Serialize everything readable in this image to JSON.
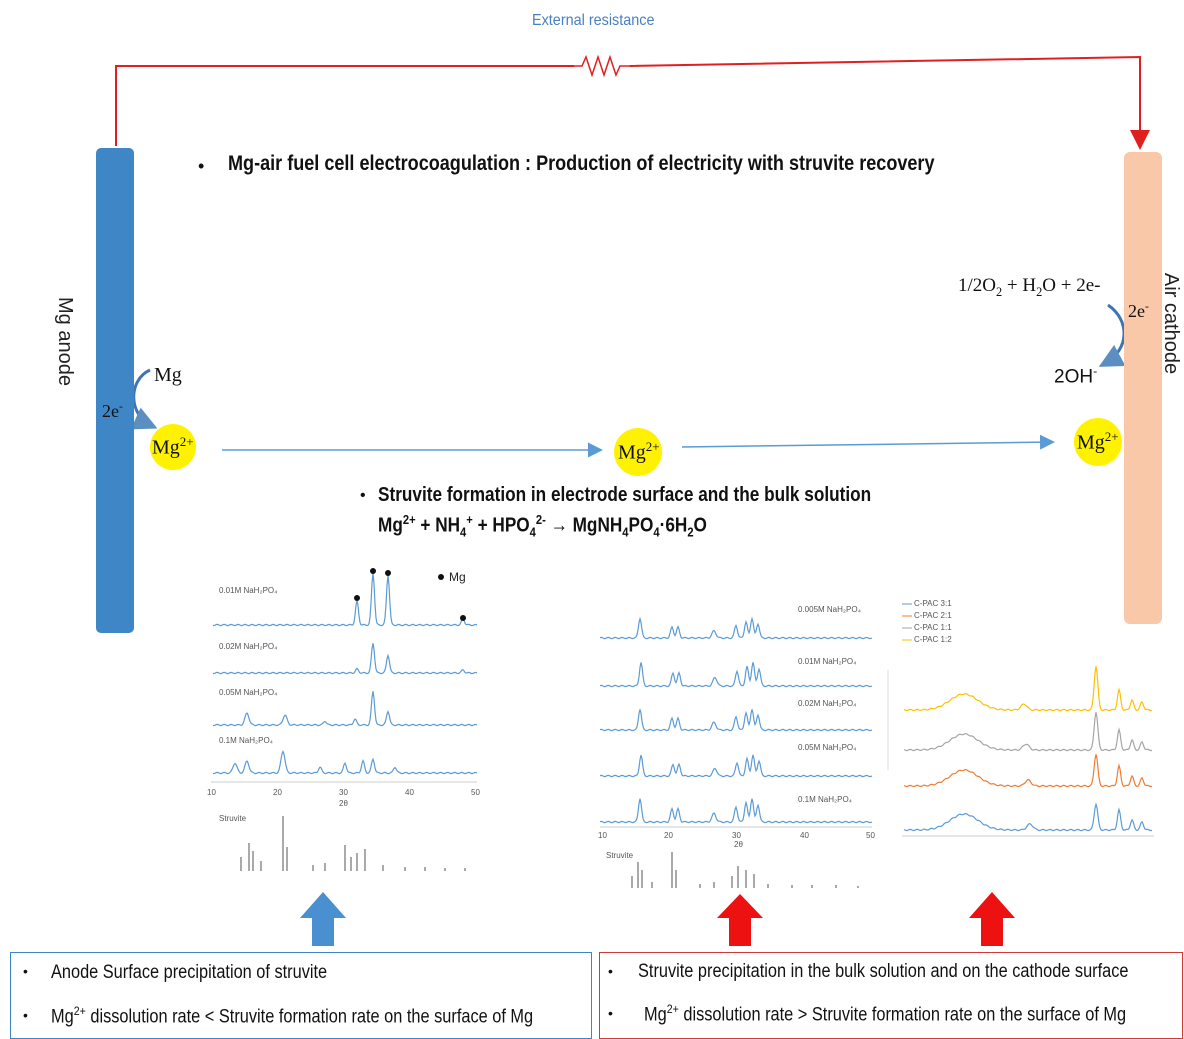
{
  "circuit": {
    "resistor_label": "External resistance",
    "anode_label": "Mg anode",
    "cathode_label": "Air cathode"
  },
  "title": {
    "bullet": "•",
    "text": "Mg-air fuel cell electrocoagulation : Production of electricity with struvite recovery"
  },
  "anode_reaction": {
    "mg": "Mg",
    "electrons": "2e",
    "ion": "Mg",
    "ion_charge": "2+"
  },
  "middle_ion": {
    "ion": "Mg",
    "charge": "2+"
  },
  "cathode_reaction": {
    "equation_parts": [
      "1/2O",
      "2",
      " + H",
      "2",
      "O + 2e-"
    ],
    "electrons": "2e",
    "hydroxide": "2OH",
    "ion": "Mg",
    "ion_charge": "2+"
  },
  "struvite": {
    "bullet": "•",
    "heading": "Struvite formation  in electrode surface and the bulk solution",
    "equation": {
      "mg": "Mg",
      "mg_charge": "2+",
      "nh4": " + NH",
      "nh4_sub": "4",
      "nh4_charge": "+",
      "hpo4": " + HPO",
      "hpo4_sub": "4",
      "hpo4_charge": "2-",
      "product": " → MgNH",
      "prod_sub1": "4",
      "po": "PO",
      "prod_sub2": "4",
      "hydrate": "·6H",
      "prod_sub3": "2",
      "o": "O"
    }
  },
  "xrd_left": {
    "legend": "Mg",
    "series_labels": [
      "0.01M NaH₂PO₄",
      "0.02M NaH₂PO₄",
      "0.05M NaH₂PO₄",
      "0.1M NaH₂PO₄"
    ],
    "x_ticks": [
      "10",
      "20",
      "30",
      "40",
      "50"
    ],
    "x_label": "2θ",
    "reference_label": "Struvite"
  },
  "xrd_middle": {
    "series_labels": [
      "0.005M NaH₂PO₄",
      "0.01M NaH₂PO₄",
      "0.02M NaH₂PO₄",
      "0.05M NaH₂PO₄",
      "0.1M NaH₂PO₄"
    ],
    "x_ticks": [
      "10",
      "20",
      "30",
      "40",
      "50"
    ],
    "x_label": "2θ",
    "reference_label": "Struvite"
  },
  "spectra_right": {
    "legend": [
      "C-PAC 3:1",
      "C-PAC 2:1",
      "C-PAC 1:1",
      "C-PAC 1:2"
    ]
  },
  "colors": {
    "anode": "#3f86c7",
    "cathode": "#f8c8a8",
    "wire": "#e02020",
    "ion": "#fff200",
    "blue_arrow": "#4a8fd0",
    "red_arrow": "#ee1111"
  },
  "left_box": {
    "line1": "Anode Surface precipitation of struvite",
    "line2_pre": "Mg",
    "line2_charge": "2+",
    "line2_post": " dissolution rate < Struvite formation rate on the surface of Mg"
  },
  "right_box": {
    "line1": "Struvite precipitation in the bulk solution and on the cathode surface",
    "line2_pre": "Mg",
    "line2_charge": "2+",
    "line2_post": " dissolution rate > Struvite formation rate on the surface of Mg"
  }
}
